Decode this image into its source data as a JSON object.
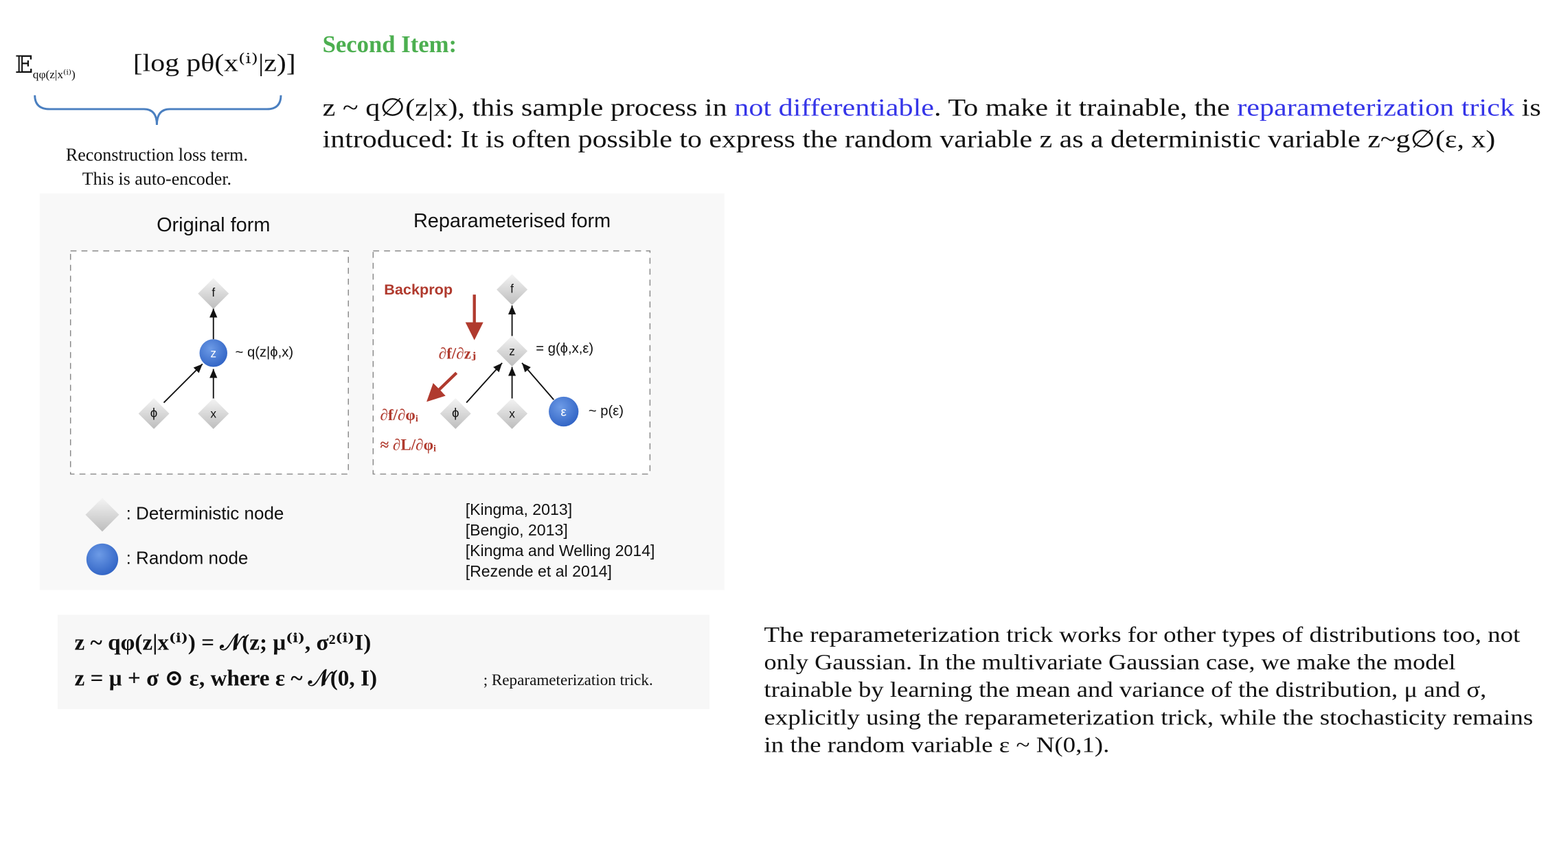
{
  "elbo": {
    "expectation": "𝔼",
    "subscript": "qφ(z|x⁽ⁱ⁾)",
    "term": "[log pθ(x⁽ⁱ⁾|z)]",
    "caption": [
      "Reconstruction loss term.",
      "This is auto-encoder."
    ]
  },
  "heading": "Second Item:",
  "intro": {
    "lines": [
      [
        {
          "text": "z ~ q∅(z|x), this sample process in "
        },
        {
          "text": "not differentiable",
          "link": true
        },
        {
          "text": ". To make it trainable, the "
        },
        {
          "text": "reparameterization trick",
          "link": true
        },
        {
          "text": " is"
        }
      ],
      [
        {
          "text": "introduced: It is often possible to express the random variable z as a deterministic variable z~g∅(ε, x)"
        }
      ]
    ]
  },
  "figure": {
    "original": {
      "title": "Original form",
      "labels": [
        "f",
        "z",
        "ϕ",
        "x",
        "~ q(z|ϕ,x)"
      ]
    },
    "reparameterised": {
      "title": "Reparameterised form",
      "labels": [
        "Backprop",
        "f",
        "z",
        "= g(ϕ,x,ε)",
        "ϕ",
        "x",
        "ε",
        "~ p(ε)",
        "∂f/∂zⱼ",
        "∂f/∂φᵢ",
        "≈ ∂L/∂φᵢ"
      ]
    },
    "legend": [
      ": Deterministic node",
      ": Random node"
    ],
    "references": [
      "[Kingma, 2013]",
      "[Bengio, 2013]",
      "[Kingma and Welling 2014]",
      "[Rezende et al 2014]"
    ]
  },
  "equations": {
    "lines": [
      "z ~ qφ(z|x⁽ⁱ⁾) = 𝒩(z; μ⁽ⁱ⁾, σ²⁽ⁱ⁾I)",
      "z = μ + σ ⊙ ε, where ε ~ 𝒩(0, I)"
    ],
    "note": "; Reparameterization trick."
  },
  "summary": {
    "lines": [
      "The reparameterization trick works for other types of distributions too, not",
      "only Gaussian. In the multivariate Gaussian case, we make the model",
      "trainable by learning the mean and variance of the distribution,  μ and σ,",
      "explicitly using the reparameterization trick, while the stochasticity remains",
      "in the random variable ε ~ N(0,1)."
    ]
  }
}
